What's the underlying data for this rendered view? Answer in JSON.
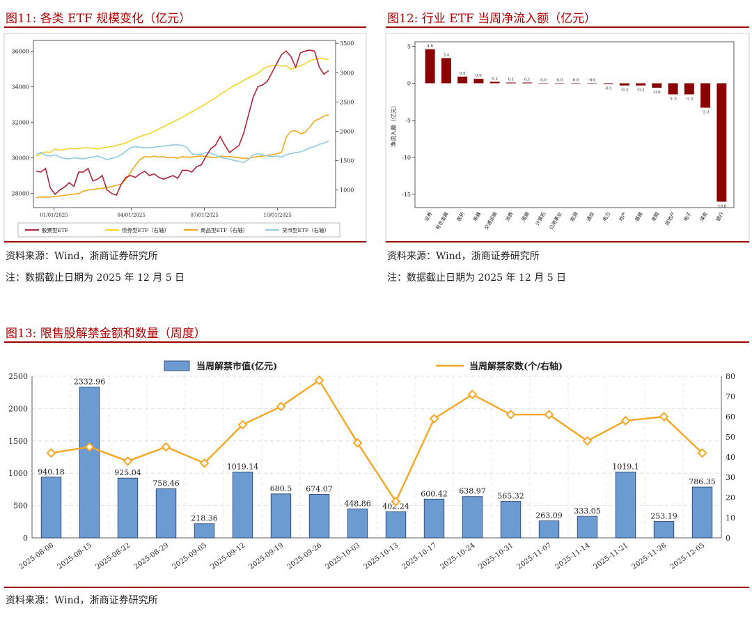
{
  "fig11": {
    "title": "图11:  各类 ETF 规模变化（亿元）",
    "source": "资料来源：Wind，浙商证券研究所",
    "note": "注：数据截止日期为 2025 年 12 月 5 日"
  },
  "fig12": {
    "title": "图12:  行业 ETF 当周净流入额（亿元）",
    "source": "资料来源：Wind，浙商证券研究所",
    "note": "注：数据截止日期为 2025 年 12 月 5 日"
  },
  "fig13": {
    "title": "图13:  限售股解禁金额和数量（周度）",
    "source": "资料来源：Wind，浙商证券研究所"
  },
  "colors": {
    "title_red": "#b30000",
    "stock_etf": "#b22234",
    "bond_etf": "#f5d327",
    "commodity_etf": "#f0a820",
    "money_etf": "#8fcbe6",
    "industry_bar": "#8b0000",
    "unlock_bar": "#6b9bd0",
    "unlock_line": "#f5a623"
  },
  "chart_data": [
    {
      "type": "line",
      "xticks": [
        "01/01/2025",
        "04/01/2025",
        "07/01/2025",
        "10/01/2025"
      ],
      "ylim_left": [
        27200,
        36600
      ],
      "yticks_left": [
        28000,
        30000,
        32000,
        34000,
        36000
      ],
      "ylim_right": [
        700,
        3550
      ],
      "yticks_right": [
        1000,
        1500,
        2000,
        2500,
        3000,
        3500
      ],
      "legend_position": "bottom",
      "grid": false,
      "series": [
        {
          "name": "股票型ETF",
          "axis": "left",
          "values": [
            29250,
            29200,
            29400,
            28300,
            27950,
            28200,
            28350,
            28600,
            28400,
            29200,
            29200,
            29400,
            28700,
            28800,
            29000,
            28200,
            28000,
            27900,
            28500,
            28900,
            29000,
            28900,
            29100,
            29250,
            29000,
            29100,
            28900,
            28800,
            28900,
            29000,
            28850,
            29300,
            29300,
            29200,
            29500,
            29600,
            30100,
            30500,
            30700,
            31200,
            30700,
            30300,
            30500,
            30700,
            31400,
            32400,
            33400,
            34000,
            34100,
            34300,
            34800,
            35300,
            35800,
            36000,
            35700,
            35100,
            35900,
            36000,
            36050,
            36000,
            35100,
            34700,
            34900
          ]
        },
        {
          "name": "债券型ETF（右轴）",
          "axis": "right",
          "values": [
            1580,
            1620,
            1650,
            1640,
            1700,
            1680,
            1690,
            1710,
            1700,
            1710,
            1720,
            1720,
            1710,
            1700,
            1720,
            1730,
            1740,
            1760,
            1780,
            1800,
            1840,
            1880,
            1910,
            1940,
            1960,
            2000,
            2040,
            2080,
            2120,
            2160,
            2200,
            2240,
            2290,
            2330,
            2380,
            2420,
            2470,
            2520,
            2570,
            2630,
            2680,
            2730,
            2780,
            2820,
            2870,
            2910,
            2950,
            2990,
            3060,
            3100,
            3120,
            3130,
            3110,
            3120,
            3060,
            3090,
            3120,
            3150,
            3200,
            3230,
            3240,
            3240,
            3220
          ]
        },
        {
          "name": "商品型ETF（右轴）",
          "axis": "right",
          "values": [
            870,
            880,
            880,
            880,
            890,
            900,
            910,
            920,
            930,
            940,
            980,
            1000,
            1010,
            1020,
            1030,
            1040,
            1060,
            1080,
            1100,
            1180,
            1300,
            1420,
            1520,
            1570,
            1560,
            1580,
            1560,
            1570,
            1550,
            1560,
            1540,
            1570,
            1560,
            1560,
            1570,
            1580,
            1570,
            1560,
            1550,
            1580,
            1570,
            1570,
            1560,
            1550,
            1540,
            1540,
            1560,
            1570,
            1580,
            1590,
            1600,
            1620,
            1640,
            1900,
            2000,
            2010,
            1960,
            1980,
            2070,
            2180,
            2210,
            2260,
            2280
          ]
        },
        {
          "name": "货币型ETF（右轴）",
          "axis": "right",
          "values": [
            1610,
            1640,
            1590,
            1580,
            1600,
            1560,
            1540,
            1530,
            1550,
            1540,
            1530,
            1550,
            1560,
            1580,
            1550,
            1520,
            1540,
            1560,
            1600,
            1660,
            1720,
            1740,
            1730,
            1720,
            1720,
            1730,
            1740,
            1750,
            1760,
            1770,
            1770,
            1760,
            1720,
            1620,
            1600,
            1610,
            1640,
            1630,
            1600,
            1560,
            1540,
            1530,
            1500,
            1490,
            1470,
            1520,
            1600,
            1620,
            1600,
            1580,
            1570,
            1580,
            1560,
            1600,
            1620,
            1640,
            1650,
            1680,
            1720,
            1740,
            1780,
            1800,
            1840
          ]
        }
      ]
    },
    {
      "type": "bar",
      "ylabel": "净流入额（亿元）",
      "ylim": [
        -16.8,
        5.6
      ],
      "yticks": [
        5,
        0,
        -5,
        -10,
        -15
      ],
      "categories": [
        "证券",
        "有色金属",
        "医药",
        "电器",
        "交通运输",
        "消费",
        "周期",
        "计算机",
        "公用事业",
        "能源",
        "通信",
        "电力",
        "地产",
        "基建",
        "金融",
        "房地产",
        "电子",
        "煤炭",
        "银行"
      ],
      "values": [
        4.6,
        3.4,
        0.9,
        0.6,
        0.2,
        0.1,
        0.1,
        0.0,
        0.0,
        0.0,
        -0.0,
        -0.1,
        -0.3,
        -0.3,
        -0.6,
        -1.5,
        -1.5,
        -3.3,
        -16.0
      ],
      "labels": [
        "4.6",
        "3.4",
        "0.9",
        "0.6",
        "0.2",
        "0.1",
        "0.1",
        "0.0",
        "0.0",
        "0.0",
        "-0.0",
        "-0.1",
        "-0.3",
        "-0.3",
        "-0.6",
        "-1.5",
        "-1.5",
        "-3.3",
        "-16.0"
      ]
    },
    {
      "type": "bar",
      "categories": [
        "2025-08-08",
        "2025-08-15",
        "2025-08-22",
        "2025-08-29",
        "2025-09-05",
        "2025-09-12",
        "2025-09-19",
        "2025-09-26",
        "2025-10-03",
        "2025-10-13",
        "2025-10-17",
        "2025-10-24",
        "2025-10-31",
        "2025-11-07",
        "2025-11-14",
        "2025-11-21",
        "2025-11-28",
        "2025-12-05"
      ],
      "ylim_left": [
        0,
        2500
      ],
      "yticks_left": [
        0,
        500,
        1000,
        1500,
        2000,
        2500
      ],
      "ylim_right": [
        0,
        80
      ],
      "yticks_right": [
        0,
        10,
        20,
        30,
        40,
        50,
        60,
        70,
        80
      ],
      "grid": true,
      "legend_position": "top",
      "series": [
        {
          "name": "当周解禁市值(亿元)",
          "type": "bar",
          "axis": "left",
          "values": [
            940.18,
            2332.96,
            925.04,
            758.46,
            218.36,
            1019.14,
            680.5,
            674.07,
            448.86,
            402.24,
            600.42,
            638.97,
            565.32,
            263.09,
            333.05,
            1019.1,
            253.19,
            786.35
          ],
          "labels": [
            "940.18",
            "2332.96",
            "925.04",
            "758.46",
            "218.36",
            "1019.14",
            "680.5",
            "674.07",
            "448.86",
            "402.24",
            "600.42",
            "638.97",
            "565.32",
            "263.09",
            "333.05",
            "1019.1",
            "253.19",
            "786.35"
          ]
        },
        {
          "name": "当周解禁家数(个/右轴)",
          "type": "line",
          "axis": "right",
          "values": [
            42,
            45,
            38,
            45,
            37,
            56,
            65,
            78,
            47,
            18,
            59,
            71,
            61,
            61,
            48,
            58,
            60,
            42
          ]
        }
      ]
    }
  ]
}
